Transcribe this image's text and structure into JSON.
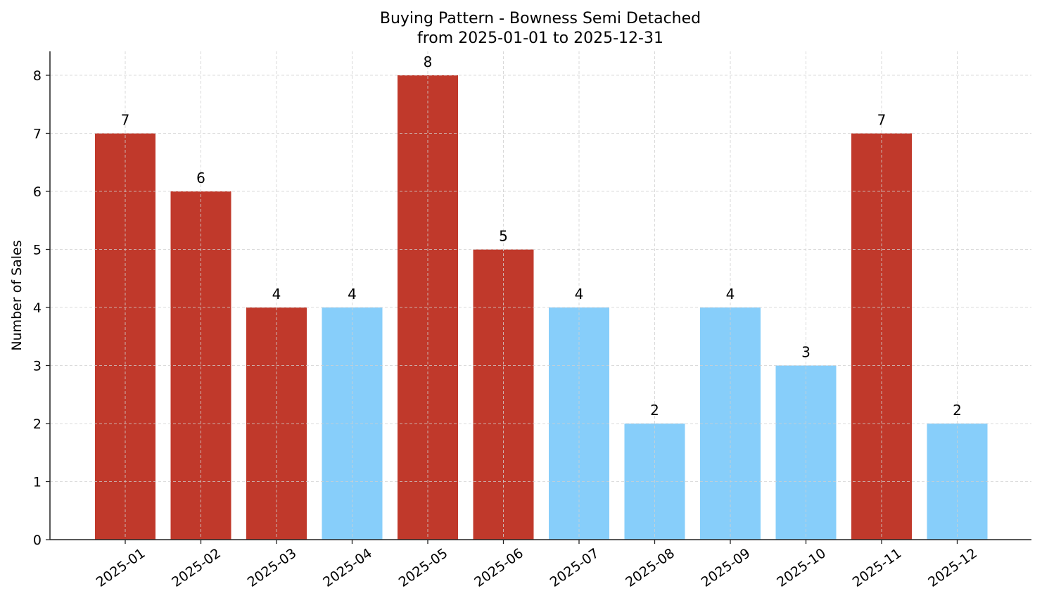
{
  "chart_data": {
    "type": "bar",
    "title": "Buying Pattern - Bowness Semi Detached",
    "subtitle": "from 2025-01-01 to 2025-12-31",
    "xlabel": "",
    "ylabel": "Number of Sales",
    "categories": [
      "2025-01",
      "2025-02",
      "2025-03",
      "2025-04",
      "2025-05",
      "2025-06",
      "2025-07",
      "2025-08",
      "2025-09",
      "2025-10",
      "2025-11",
      "2025-12"
    ],
    "values": [
      7,
      6,
      4,
      4,
      8,
      5,
      4,
      2,
      4,
      3,
      7,
      2
    ],
    "bar_colors": [
      "#c0392b",
      "#c0392b",
      "#c0392b",
      "#87cefa",
      "#c0392b",
      "#c0392b",
      "#87cefa",
      "#87cefa",
      "#87cefa",
      "#87cefa",
      "#c0392b",
      "#87cefa"
    ],
    "ylim": [
      0,
      8.4
    ],
    "yticks": [
      0,
      1,
      2,
      3,
      4,
      5,
      6,
      7,
      8
    ],
    "grid": true,
    "data_labels": true,
    "legend": "none"
  }
}
